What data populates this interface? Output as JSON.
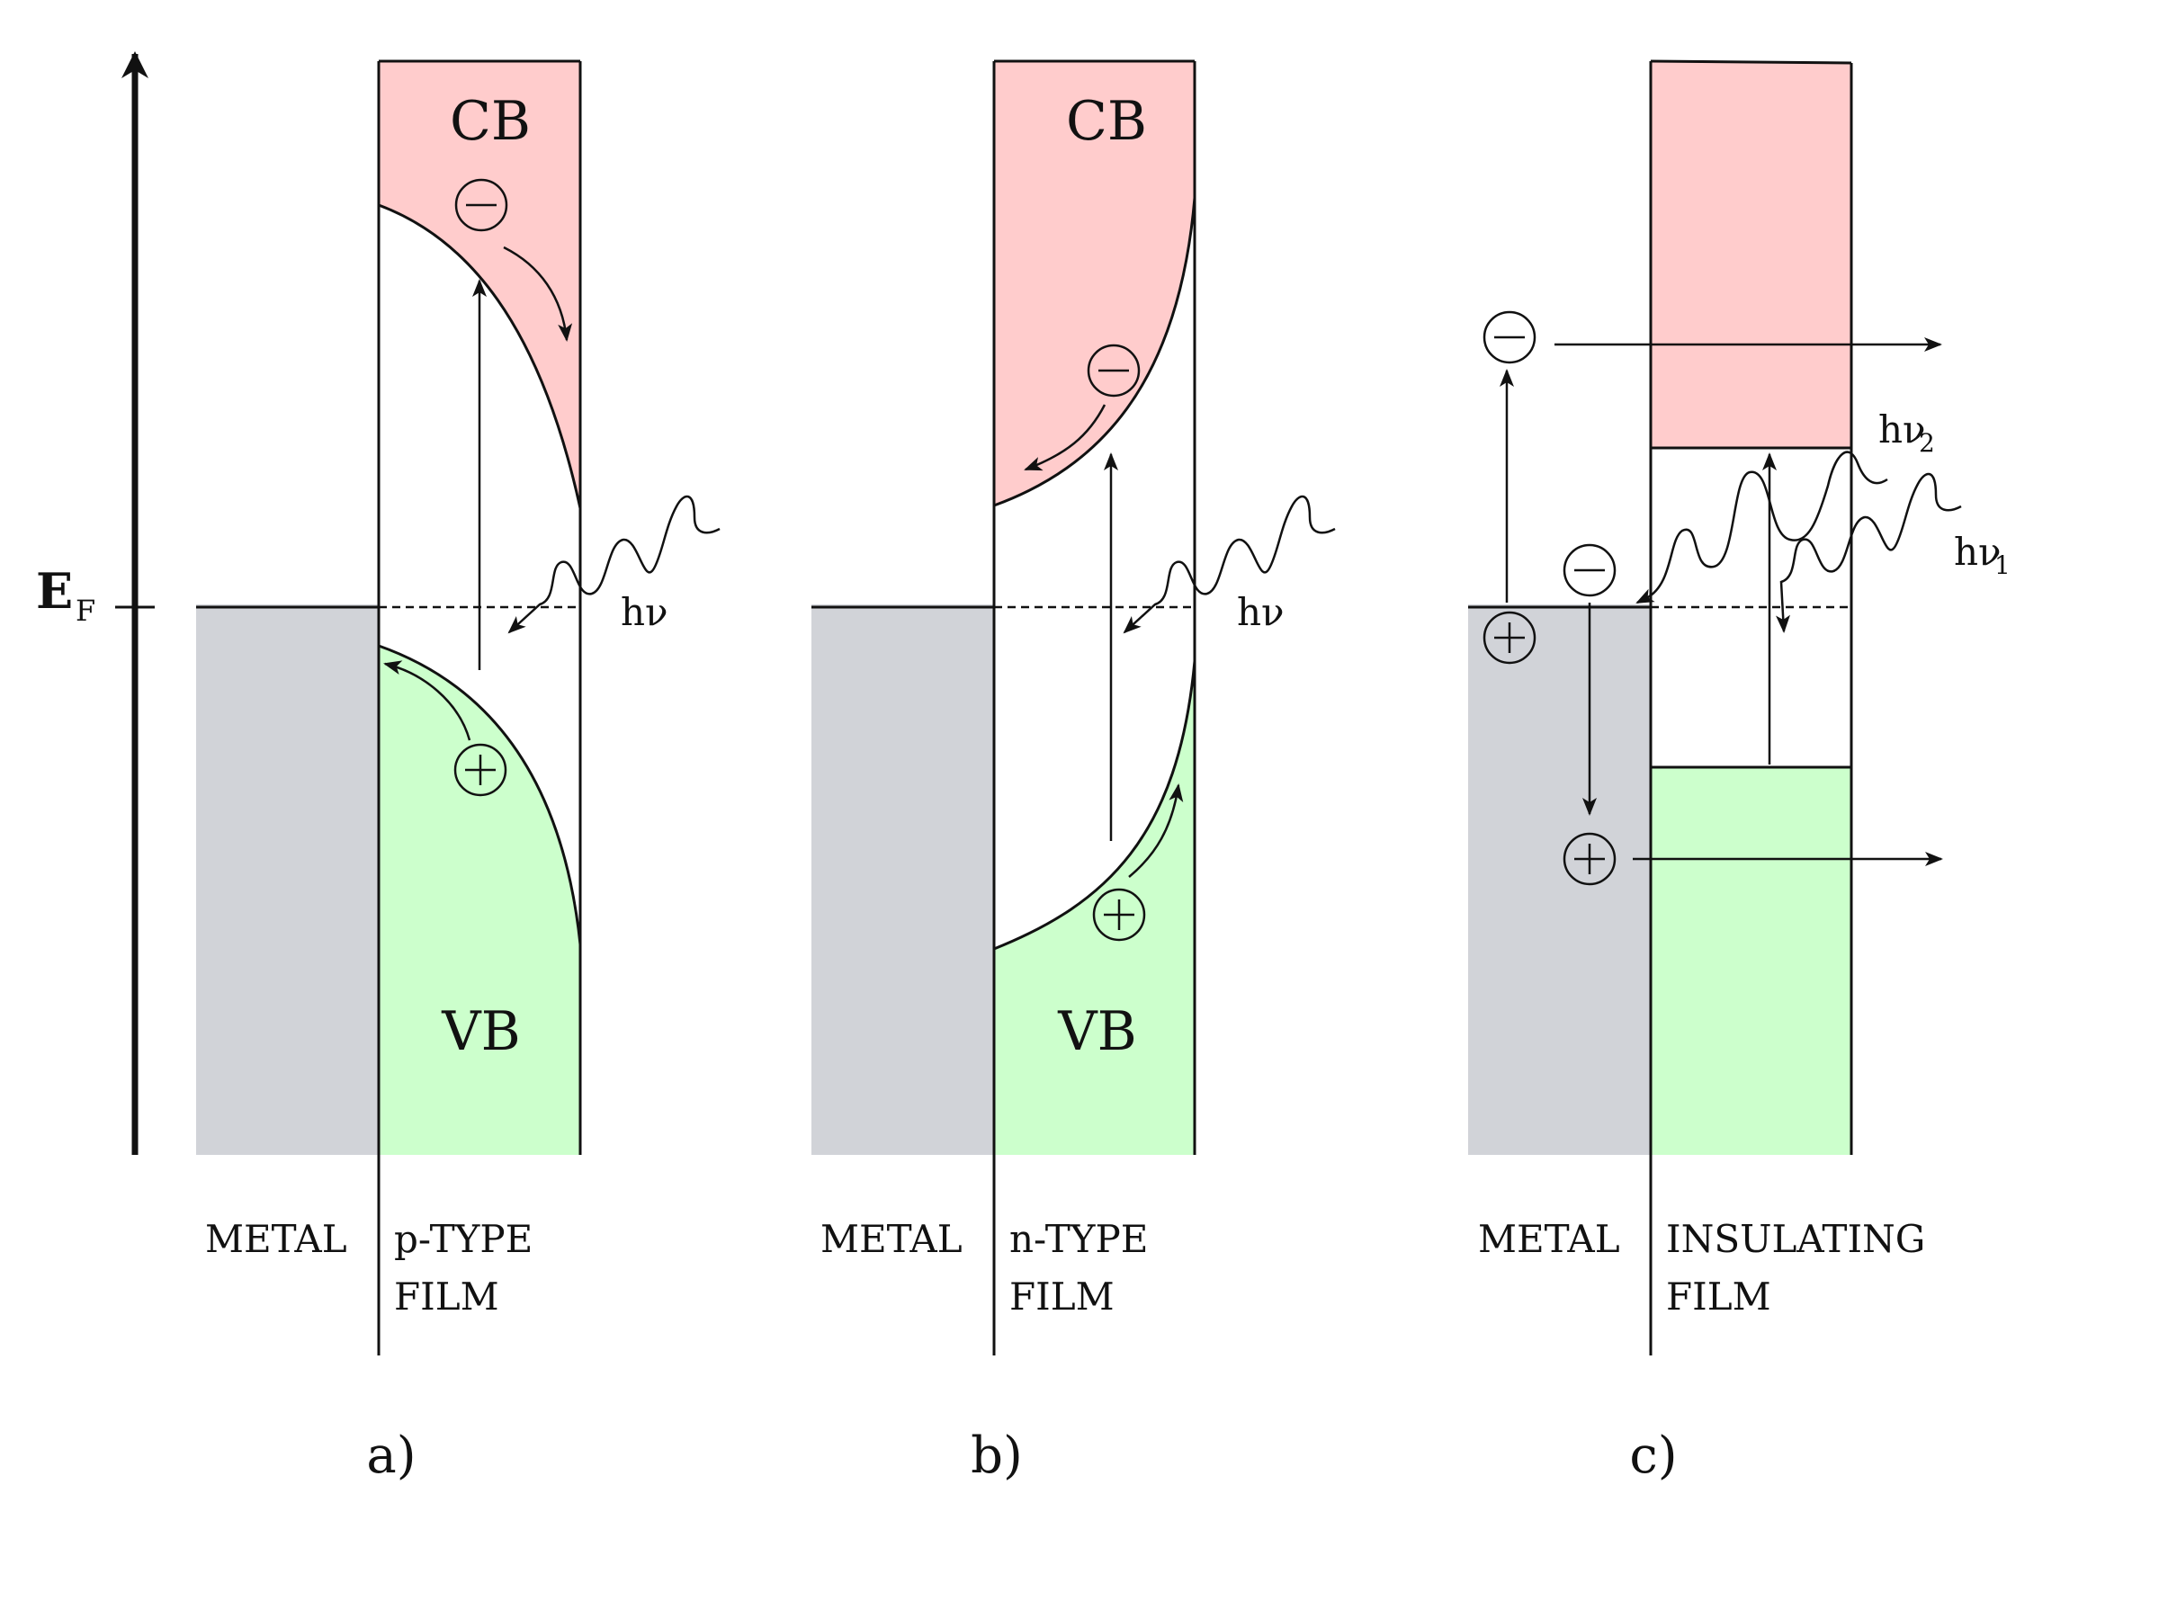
{
  "axis": {
    "label": "E",
    "subscript": "F"
  },
  "colors": {
    "conduction_band": "#ffcccc",
    "valence_band": "#ccffcc",
    "metal": "#d1d3d8",
    "line": "#111111"
  },
  "symbols": {
    "electron": "−",
    "hole": "+"
  },
  "panels": {
    "a": {
      "caption": "a)",
      "metal_label": "METAL",
      "film_label_line1": "p-TYPE",
      "film_label_line2": "FILM",
      "cb_label": "CB",
      "vb_label": "VB",
      "photon_label": "hν"
    },
    "b": {
      "caption": "b)",
      "metal_label": "METAL",
      "film_label_line1": "n-TYPE",
      "film_label_line2": "FILM",
      "cb_label": "CB",
      "vb_label": "VB",
      "photon_label": "hν"
    },
    "c": {
      "caption": "c)",
      "metal_label": "METAL",
      "film_label_line1": "INSULATING",
      "film_label_line2": "FILM",
      "photon1_label": "hν",
      "photon1_subscript": "1",
      "photon2_label": "hν",
      "photon2_subscript": "2"
    }
  }
}
